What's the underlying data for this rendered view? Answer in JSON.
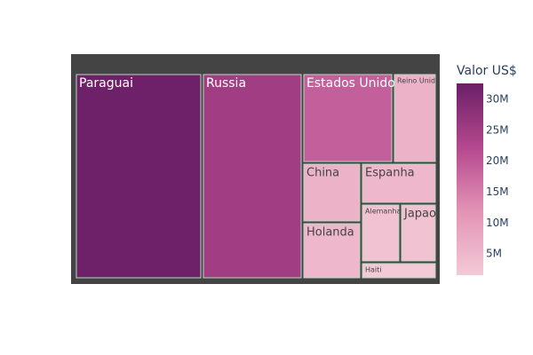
{
  "chart_data": {
    "type": "treemap",
    "labels": [
      "Paraguai",
      "Russia",
      "Estados Unidos",
      "Reino Unido",
      "China",
      "Espanha",
      "Holanda",
      "Alemanha",
      "Japao",
      "Haiti"
    ],
    "values": [
      32,
      25,
      19,
      6,
      6,
      5,
      5,
      3,
      3,
      1
    ],
    "colorscale": [
      "#f3cad6",
      "#e393b5",
      "#b5488e",
      "#6a1f67"
    ],
    "colorbar": {
      "title": "Valor US$",
      "ticks": [
        "5M",
        "10M",
        "15M",
        "20M",
        "25M",
        "30M"
      ],
      "tick_values": [
        5,
        10,
        15,
        20,
        25,
        30
      ],
      "range": [
        1.5,
        32.5
      ]
    },
    "root_color": "#444444",
    "tile_border_color": "#bcd6c3"
  }
}
